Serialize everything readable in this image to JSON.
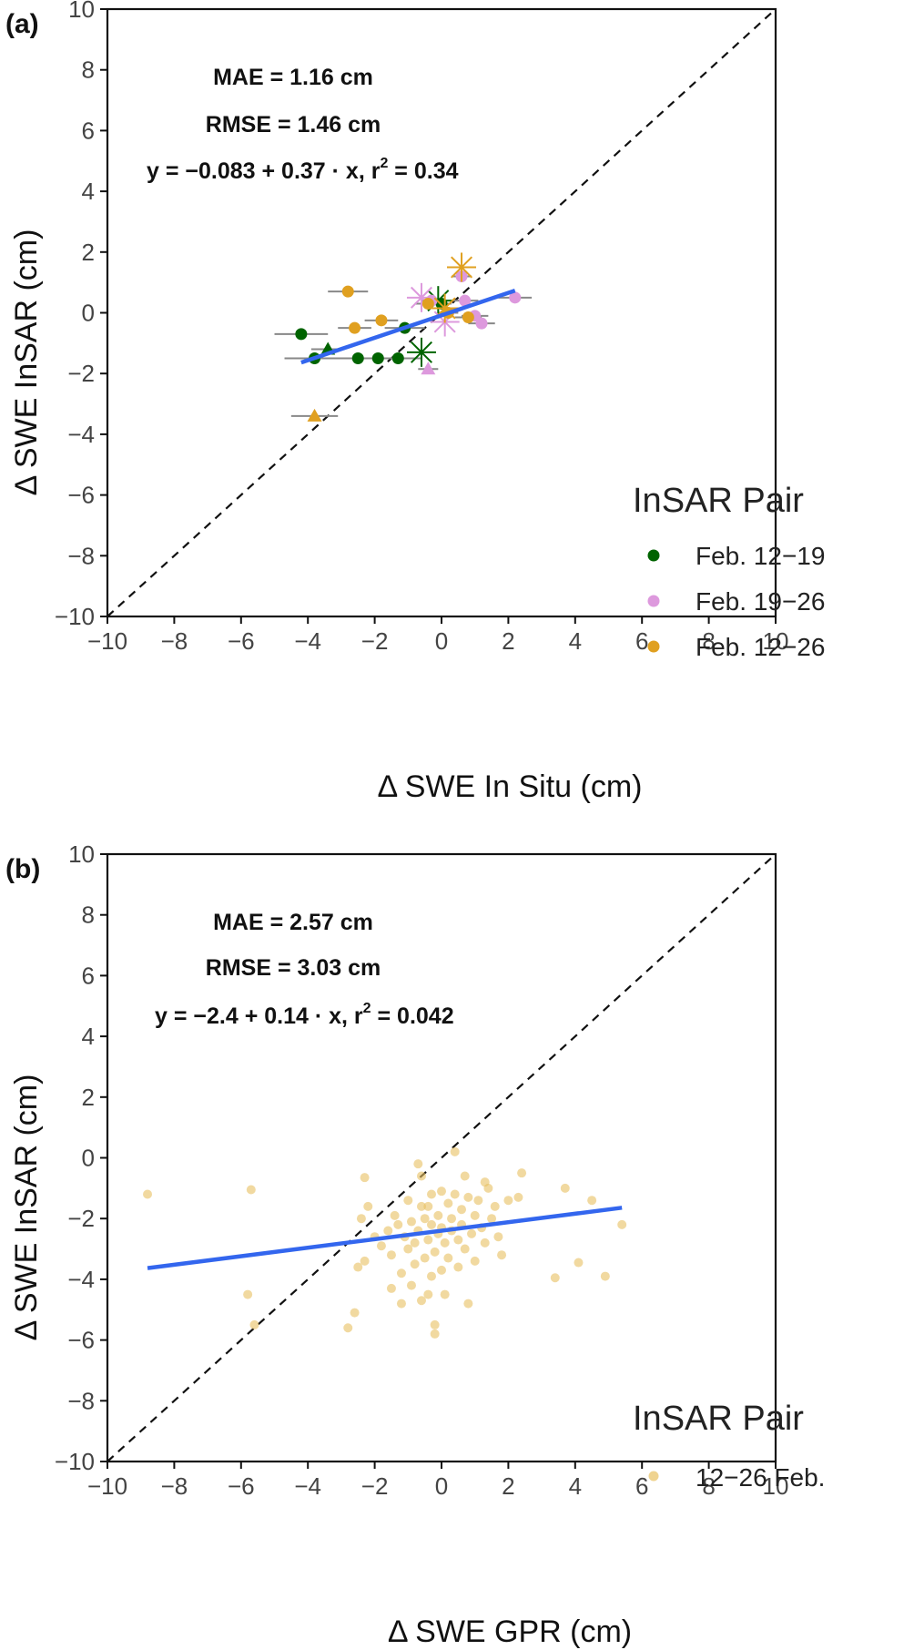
{
  "chart_data": [
    {
      "type": "scatter",
      "panel_label": "(a)",
      "xlabel": "Δ SWE In Situ (cm)",
      "ylabel": "Δ SWE InSAR (cm)",
      "xlim": [
        -10,
        10
      ],
      "ylim": [
        -10,
        10
      ],
      "xticks": [
        "−10",
        "−8",
        "−6",
        "−4",
        "−2",
        "0",
        "2",
        "4",
        "6",
        "8",
        "10"
      ],
      "yticks": [
        "10",
        "8",
        "6",
        "4",
        "2",
        "0",
        "−2",
        "−4",
        "−6",
        "−8",
        "−10"
      ],
      "grid": false,
      "one_to_one_line": true,
      "stats": {
        "mae": "MAE = 1.16 cm",
        "rmse": "RMSE = 1.46 cm",
        "equation": "y = −0.083 + 0.37 · x,  r",
        "r2": " = 0.34"
      },
      "regression": {
        "intercept": -0.083,
        "slope": 0.37,
        "x_range": [
          -4.2,
          2.2
        ],
        "color": "#3366ee"
      },
      "legend_title": "InSAR Pair",
      "legend_position": "bottom-right",
      "series": [
        {
          "name": "Feb. 12−19",
          "color": "#006400",
          "points": [
            {
              "x": -4.2,
              "y": -0.7,
              "xerr": 0.8
            },
            {
              "x": -3.8,
              "y": -1.5,
              "xerr": 0.9
            },
            {
              "x": -2.5,
              "y": -1.5,
              "xerr": 0.6
            },
            {
              "x": -1.9,
              "y": -1.5,
              "xerr": 0.6
            },
            {
              "x": -1.3,
              "y": -1.5,
              "xerr": 0.7
            },
            {
              "x": -1.1,
              "y": -0.5,
              "xerr": 0.6
            },
            {
              "x": 0.0,
              "y": 0.3,
              "xerr": 0.3
            }
          ],
          "triangles": [
            {
              "x": -3.4,
              "y": -1.2,
              "xerr": 0.5
            }
          ],
          "stars": [
            {
              "x": -0.6,
              "y": -1.3
            },
            {
              "x": -0.1,
              "y": 0.4
            }
          ]
        },
        {
          "name": "Feb. 19−26",
          "color": "#dd99dd",
          "points": [
            {
              "x": 0.6,
              "y": 1.2,
              "xerr": 0.3
            },
            {
              "x": 0.7,
              "y": 0.4,
              "xerr": 0.4
            },
            {
              "x": 1.0,
              "y": -0.1,
              "xerr": 0.4
            },
            {
              "x": 1.2,
              "y": -0.35,
              "xerr": 0.4
            },
            {
              "x": 2.2,
              "y": 0.5,
              "xerr": 0.5
            },
            {
              "x": -0.3,
              "y": 0.4,
              "xerr": 0.3
            }
          ],
          "triangles": [
            {
              "x": -0.4,
              "y": -1.85,
              "xerr": 0.3
            }
          ],
          "stars": [
            {
              "x": -0.6,
              "y": 0.5
            },
            {
              "x": 0.1,
              "y": -0.3
            }
          ]
        },
        {
          "name": "Feb. 12−26",
          "color": "#e0a020",
          "points": [
            {
              "x": -2.8,
              "y": 0.7,
              "xerr": 0.6
            },
            {
              "x": -2.6,
              "y": -0.5,
              "xerr": 0.5
            },
            {
              "x": -1.8,
              "y": -0.25,
              "xerr": 0.5
            },
            {
              "x": -0.4,
              "y": 0.3,
              "xerr": 0.4
            },
            {
              "x": 0.2,
              "y": 0.0,
              "xerr": 0.3
            },
            {
              "x": 0.8,
              "y": -0.15,
              "xerr": 0.4
            }
          ],
          "triangles": [
            {
              "x": -3.8,
              "y": -3.4,
              "xerr": 0.7
            }
          ],
          "stars": [
            {
              "x": 0.6,
              "y": 1.5
            },
            {
              "x": 0.1,
              "y": 0.15
            }
          ]
        }
      ]
    },
    {
      "type": "scatter",
      "panel_label": "(b)",
      "xlabel": "Δ SWE GPR (cm)",
      "ylabel": "Δ SWE InSAR (cm)",
      "xlim": [
        -10,
        10
      ],
      "ylim": [
        -10,
        10
      ],
      "xticks": [
        "−10",
        "−8",
        "−6",
        "−4",
        "−2",
        "0",
        "2",
        "4",
        "6",
        "8",
        "10"
      ],
      "yticks": [
        "10",
        "8",
        "6",
        "4",
        "2",
        "0",
        "−2",
        "−4",
        "−6",
        "−8",
        "−10"
      ],
      "grid": false,
      "one_to_one_line": true,
      "stats": {
        "mae": "MAE = 2.57 cm",
        "rmse": "RMSE = 3.03 cm",
        "equation": "y = −2.4 + 0.14 · x,  r",
        "r2": " = 0.042"
      },
      "regression": {
        "intercept": -2.4,
        "slope": 0.14,
        "x_range": [
          -8.8,
          5.4
        ],
        "color": "#3366ee"
      },
      "legend_title": "InSAR Pair",
      "legend_position": "bottom-right",
      "series": [
        {
          "name": "12−26 Feb.",
          "color": "#e8c060",
          "points": [
            {
              "x": -8.8,
              "y": -1.2
            },
            {
              "x": -5.8,
              "y": -4.5
            },
            {
              "x": -5.7,
              "y": -1.05
            },
            {
              "x": -5.6,
              "y": -5.5
            },
            {
              "x": -2.8,
              "y": -5.6
            },
            {
              "x": -2.6,
              "y": -5.1
            },
            {
              "x": -2.5,
              "y": -3.6
            },
            {
              "x": -2.4,
              "y": -2.0
            },
            {
              "x": -2.3,
              "y": -0.65
            },
            {
              "x": -2.3,
              "y": -3.4
            },
            {
              "x": -2.2,
              "y": -1.6
            },
            {
              "x": -2.0,
              "y": -2.6
            },
            {
              "x": -1.8,
              "y": -2.9
            },
            {
              "x": -1.6,
              "y": -2.4
            },
            {
              "x": -1.5,
              "y": -3.2
            },
            {
              "x": -1.5,
              "y": -4.3
            },
            {
              "x": -1.4,
              "y": -1.9
            },
            {
              "x": -1.3,
              "y": -2.2
            },
            {
              "x": -1.2,
              "y": -3.8
            },
            {
              "x": -1.2,
              "y": -4.8
            },
            {
              "x": -1.1,
              "y": -2.6
            },
            {
              "x": -1.0,
              "y": -1.4
            },
            {
              "x": -1.0,
              "y": -3.0
            },
            {
              "x": -0.9,
              "y": -2.1
            },
            {
              "x": -0.9,
              "y": -4.2
            },
            {
              "x": -0.8,
              "y": -3.5
            },
            {
              "x": -0.8,
              "y": -2.8
            },
            {
              "x": -0.7,
              "y": -0.2
            },
            {
              "x": -0.7,
              "y": -2.4
            },
            {
              "x": -0.6,
              "y": -0.6
            },
            {
              "x": -0.6,
              "y": -1.6
            },
            {
              "x": -0.6,
              "y": -4.7
            },
            {
              "x": -0.5,
              "y": -2.0
            },
            {
              "x": -0.5,
              "y": -3.3
            },
            {
              "x": -0.4,
              "y": -1.6
            },
            {
              "x": -0.4,
              "y": -2.7
            },
            {
              "x": -0.4,
              "y": -4.5
            },
            {
              "x": -0.3,
              "y": -3.9
            },
            {
              "x": -0.3,
              "y": -1.2
            },
            {
              "x": -0.3,
              "y": -2.2
            },
            {
              "x": -0.2,
              "y": -3.1
            },
            {
              "x": -0.2,
              "y": -5.8
            },
            {
              "x": -0.2,
              "y": -5.5
            },
            {
              "x": -0.1,
              "y": -2.5
            },
            {
              "x": -0.1,
              "y": -1.9
            },
            {
              "x": 0.0,
              "y": -3.7
            },
            {
              "x": 0.0,
              "y": -1.1
            },
            {
              "x": 0.0,
              "y": -2.3
            },
            {
              "x": 0.1,
              "y": -4.5
            },
            {
              "x": 0.1,
              "y": -2.8
            },
            {
              "x": 0.2,
              "y": -1.5
            },
            {
              "x": 0.2,
              "y": -3.3
            },
            {
              "x": 0.3,
              "y": -2.0
            },
            {
              "x": 0.3,
              "y": -2.4
            },
            {
              "x": 0.4,
              "y": 0.2
            },
            {
              "x": 0.4,
              "y": -1.2
            },
            {
              "x": 0.5,
              "y": -2.7
            },
            {
              "x": 0.5,
              "y": -3.6
            },
            {
              "x": 0.6,
              "y": -1.7
            },
            {
              "x": 0.6,
              "y": -2.2
            },
            {
              "x": 0.7,
              "y": -0.6
            },
            {
              "x": 0.7,
              "y": -3.0
            },
            {
              "x": 0.8,
              "y": -4.8
            },
            {
              "x": 0.8,
              "y": -1.3
            },
            {
              "x": 0.9,
              "y": -2.5
            },
            {
              "x": 1.0,
              "y": -1.9
            },
            {
              "x": 1.0,
              "y": -3.4
            },
            {
              "x": 1.1,
              "y": -1.4
            },
            {
              "x": 1.2,
              "y": -2.3
            },
            {
              "x": 1.3,
              "y": -0.8
            },
            {
              "x": 1.3,
              "y": -2.8
            },
            {
              "x": 1.4,
              "y": -1.0
            },
            {
              "x": 1.5,
              "y": -2.0
            },
            {
              "x": 1.6,
              "y": -1.6
            },
            {
              "x": 1.7,
              "y": -2.6
            },
            {
              "x": 1.8,
              "y": -3.2
            },
            {
              "x": 2.0,
              "y": -1.4
            },
            {
              "x": 2.3,
              "y": -1.3
            },
            {
              "x": 2.4,
              "y": -0.5
            },
            {
              "x": 3.4,
              "y": -3.95
            },
            {
              "x": 3.7,
              "y": -1.0
            },
            {
              "x": 4.1,
              "y": -3.45
            },
            {
              "x": 4.5,
              "y": -1.4
            },
            {
              "x": 4.9,
              "y": -3.9
            },
            {
              "x": 5.4,
              "y": -2.2
            }
          ]
        }
      ]
    }
  ]
}
